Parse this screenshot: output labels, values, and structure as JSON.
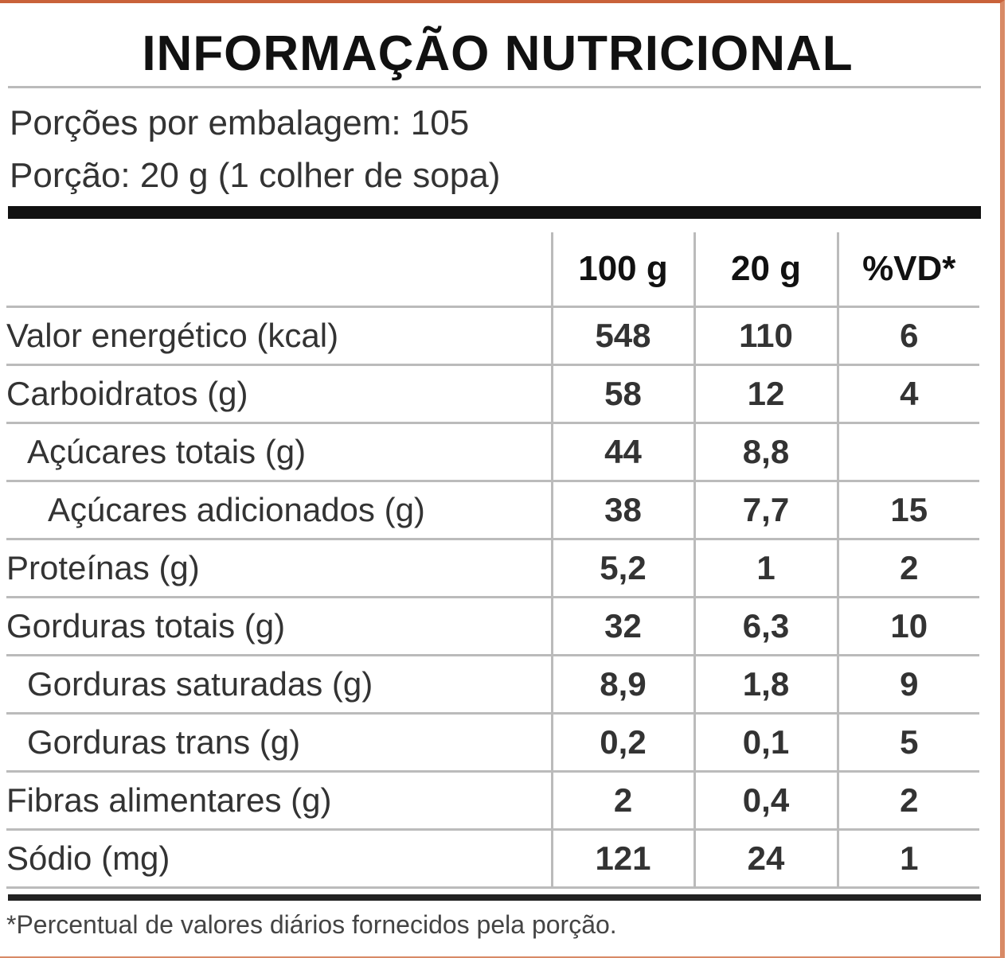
{
  "header": {
    "title": "INFORMAÇÃO NUTRICIONAL",
    "servings": "Porções por embalagem: 105",
    "portion": "Porção: 20 g (1 colher de sopa)"
  },
  "table": {
    "columns": [
      "100 g",
      "20 g",
      "%VD*"
    ],
    "rows": [
      {
        "label": "Valor energético (kcal)",
        "per100": "548",
        "portion": "110",
        "vd": "6"
      },
      {
        "label": "Carboidratos (g)",
        "per100": "58",
        "portion": "12",
        "vd": "4",
        "sub": [
          {
            "label": "Açúcares totais (g)",
            "per100": "44",
            "portion": "8,8",
            "sub": [
              {
                "label": "Açúcares adicionados (g)",
                "per100": "38",
                "portion": "7,7",
                "vd": "15"
              }
            ]
          }
        ]
      },
      {
        "label": "Proteínas (g)",
        "per100": "5,2",
        "portion": "1",
        "vd": "2"
      },
      {
        "label": "Gorduras totais (g)",
        "per100": "32",
        "portion": "6,3",
        "vd": "10",
        "sub": [
          {
            "label": "Gorduras saturadas (g)",
            "per100": "8,9",
            "portion": "1,8",
            "vd": "9"
          },
          {
            "label": "Gorduras trans (g)",
            "per100": "0,2",
            "portion": "0,1",
            "vd": "5"
          }
        ]
      },
      {
        "label": "Fibras alimentares (g)",
        "per100": "2",
        "portion": "0,4",
        "vd": "2"
      },
      {
        "label": "Sódio (mg)",
        "per100": "121",
        "portion": "24",
        "vd": "1"
      }
    ]
  },
  "footer": {
    "note": "*Percentual de valores diários fornecidos pela porção."
  }
}
